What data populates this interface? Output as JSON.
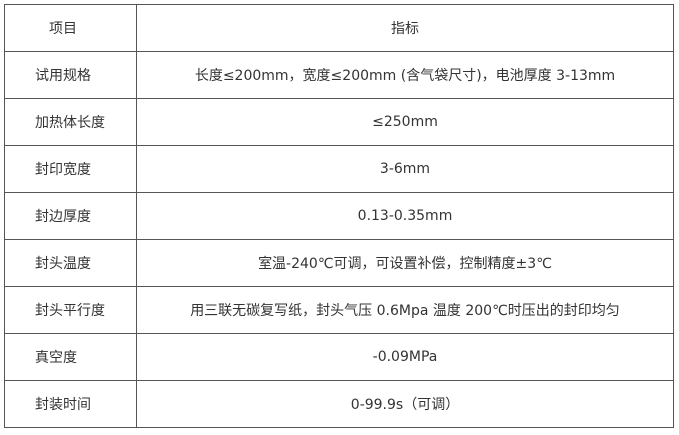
{
  "header": {
    "item": "项目",
    "spec": "指标"
  },
  "rows": [
    {
      "item": "试用规格",
      "spec": "长度≤200mm，宽度≤200mm (含气袋尺寸)，电池厚度 3-13mm"
    },
    {
      "item": "加热体长度",
      "spec": "≤250mm"
    },
    {
      "item": "封印宽度",
      "spec": "3-6mm"
    },
    {
      "item": "封边厚度",
      "spec": "0.13-0.35mm"
    },
    {
      "item": "封头温度",
      "spec": "室温-240℃可调，可设置补偿，控制精度±3℃"
    },
    {
      "item": "封头平行度",
      "spec": "用三联无碳复写纸，封头气压 0.6Mpa 温度 200℃时压出的封印均匀"
    },
    {
      "item": "真空度",
      "spec": "-0.09MPa"
    },
    {
      "item": "封装时间",
      "spec": "0-99.9s（可调）"
    }
  ]
}
